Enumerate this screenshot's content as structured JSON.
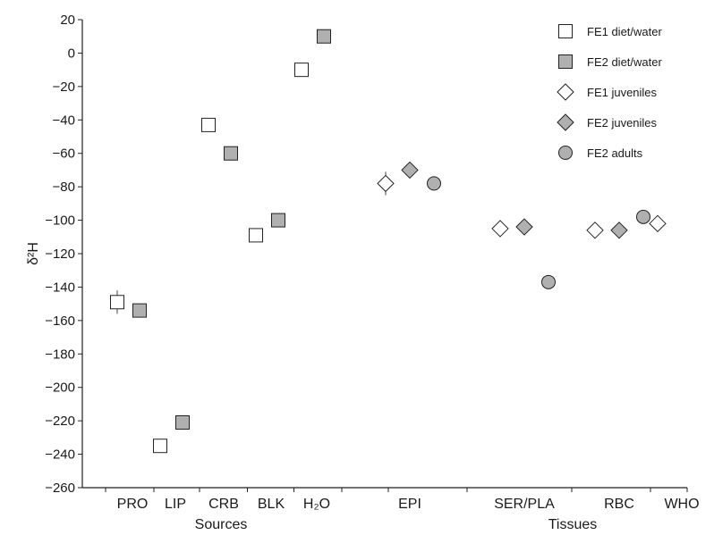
{
  "chart_data": {
    "type": "scatter",
    "title": "",
    "ylabel": "δ²H",
    "ylim": [
      -260,
      20
    ],
    "ytick_step": 20,
    "grid": false,
    "legend_position": "top-right",
    "categories": [
      "PRO",
      "LIP",
      "CRB",
      "BLK",
      "H₂O",
      "",
      "EPI",
      "SER/PLA",
      "RBC",
      "WHO"
    ],
    "group_labels": [
      "Sources",
      "Tissues"
    ],
    "series": [
      {
        "name": "FE1 diet/water",
        "marker": "square",
        "color": "#ffffff",
        "points": [
          {
            "category": "PRO",
            "y": -149,
            "err": 7
          },
          {
            "category": "LIP",
            "y": -235
          },
          {
            "category": "CRB",
            "y": -43
          },
          {
            "category": "BLK",
            "y": -109
          },
          {
            "category": "H₂O",
            "y": -10
          }
        ]
      },
      {
        "name": "FE2 diet/water",
        "marker": "square",
        "color": "#b0b0b0",
        "points": [
          {
            "category": "PRO",
            "y": -154
          },
          {
            "category": "LIP",
            "y": -221
          },
          {
            "category": "CRB",
            "y": -60
          },
          {
            "category": "BLK",
            "y": -100
          },
          {
            "category": "H₂O",
            "y": 10
          }
        ]
      },
      {
        "name": "FE1 juveniles",
        "marker": "diamond",
        "color": "#ffffff",
        "points": [
          {
            "category": "EPI",
            "y": -78,
            "err": 7
          },
          {
            "category": "SER/PLA",
            "y": -105,
            "err": 5
          },
          {
            "category": "RBC",
            "y": -106
          },
          {
            "category": "WHO",
            "y": -102
          }
        ]
      },
      {
        "name": "FE2 juveniles",
        "marker": "diamond",
        "color": "#b0b0b0",
        "points": [
          {
            "category": "EPI",
            "y": -70
          },
          {
            "category": "SER/PLA",
            "y": -104
          },
          {
            "category": "RBC",
            "y": -106
          }
        ]
      },
      {
        "name": "FE2 adults",
        "marker": "circle",
        "color": "#b0b0b0",
        "points": [
          {
            "category": "EPI",
            "y": -78
          },
          {
            "category": "SER/PLA",
            "y": -137
          },
          {
            "category": "RBC",
            "y": -98
          }
        ]
      }
    ]
  }
}
